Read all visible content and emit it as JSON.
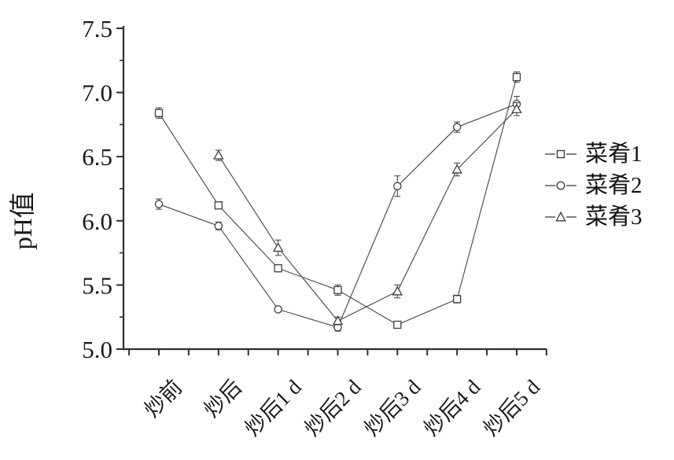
{
  "chart_data": {
    "type": "line",
    "title": "",
    "xlabel": "",
    "ylabel": "pH值",
    "categories": [
      "炒前",
      "炒后",
      "炒后1 d",
      "炒后2 d",
      "炒后3 d",
      "炒后4 d",
      "炒后5 d"
    ],
    "ylim": [
      5.0,
      7.5
    ],
    "y_major_ticks": [
      "5.0",
      "5.5",
      "6.0",
      "6.5",
      "7.0",
      "7.5"
    ],
    "y_minor_step": 0.25,
    "grid": false,
    "legend_position": "right-outside",
    "series": [
      {
        "name": "菜肴1",
        "marker": "square",
        "values": [
          6.84,
          6.12,
          5.63,
          5.46,
          5.19,
          5.39,
          7.12
        ],
        "errors": [
          0.04,
          0.02,
          0.02,
          0.04,
          0.02,
          0.03,
          0.04
        ]
      },
      {
        "name": "菜肴2",
        "marker": "circle",
        "values": [
          6.13,
          5.96,
          5.31,
          5.17,
          6.27,
          6.73,
          6.91
        ],
        "errors": [
          0.04,
          0.03,
          0.02,
          0.03,
          0.08,
          0.04,
          0.06
        ]
      },
      {
        "name": "菜肴3",
        "marker": "triangle",
        "values": [
          null,
          6.51,
          5.79,
          5.22,
          5.45,
          6.4,
          6.87
        ],
        "errors": [
          null,
          0.04,
          0.06,
          0.03,
          0.05,
          0.05,
          0.05
        ]
      }
    ],
    "colors": {
      "axis": "#2e2e2e",
      "tick_text": "#1a1a1a",
      "series_line": "#4a4a4a",
      "marker_stroke": "#3d3d3d",
      "marker_fill": "#ffffff",
      "background": "#ffffff"
    }
  }
}
